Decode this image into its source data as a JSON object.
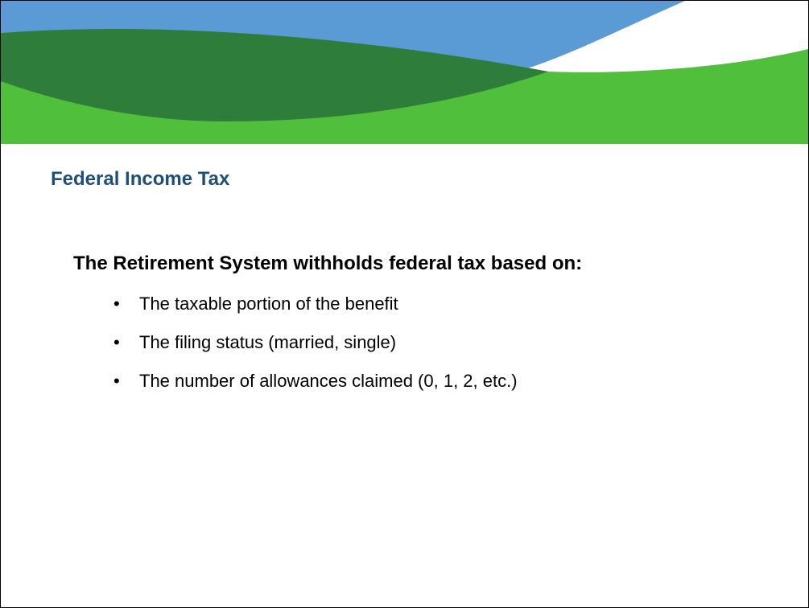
{
  "title": "Federal Income Tax",
  "body": {
    "lead": "The Retirement System withholds federal tax based on:",
    "bullets": [
      "The taxable portion of the benefit",
      "The filing status (married, single)",
      "The number of allowances claimed (0, 1, 2, etc.)"
    ]
  }
}
